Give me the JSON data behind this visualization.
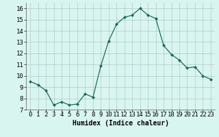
{
  "x": [
    0,
    1,
    2,
    3,
    4,
    5,
    6,
    7,
    8,
    9,
    10,
    11,
    12,
    13,
    14,
    15,
    16,
    17,
    18,
    19,
    20,
    21,
    22,
    23
  ],
  "y": [
    9.5,
    9.2,
    8.7,
    7.4,
    7.7,
    7.4,
    7.5,
    8.4,
    8.1,
    10.9,
    13.1,
    14.6,
    15.2,
    15.4,
    16.0,
    15.4,
    15.1,
    12.7,
    11.9,
    11.4,
    10.7,
    10.8,
    10.0,
    9.7
  ],
  "line_color": "#1a6b5a",
  "marker": "D",
  "marker_size": 2,
  "bg_color": "#d9f5f0",
  "grid_color": "#b0c8c8",
  "xlabel": "Humidex (Indice chaleur)",
  "xlim": [
    -0.5,
    23.5
  ],
  "ylim": [
    7,
    16.5
  ],
  "yticks": [
    7,
    8,
    9,
    10,
    11,
    12,
    13,
    14,
    15,
    16
  ],
  "xticks": [
    0,
    1,
    2,
    3,
    4,
    5,
    6,
    7,
    8,
    9,
    10,
    11,
    12,
    13,
    14,
    15,
    16,
    17,
    18,
    19,
    20,
    21,
    22,
    23
  ],
  "xlabel_fontsize": 7,
  "tick_fontsize": 6.5
}
